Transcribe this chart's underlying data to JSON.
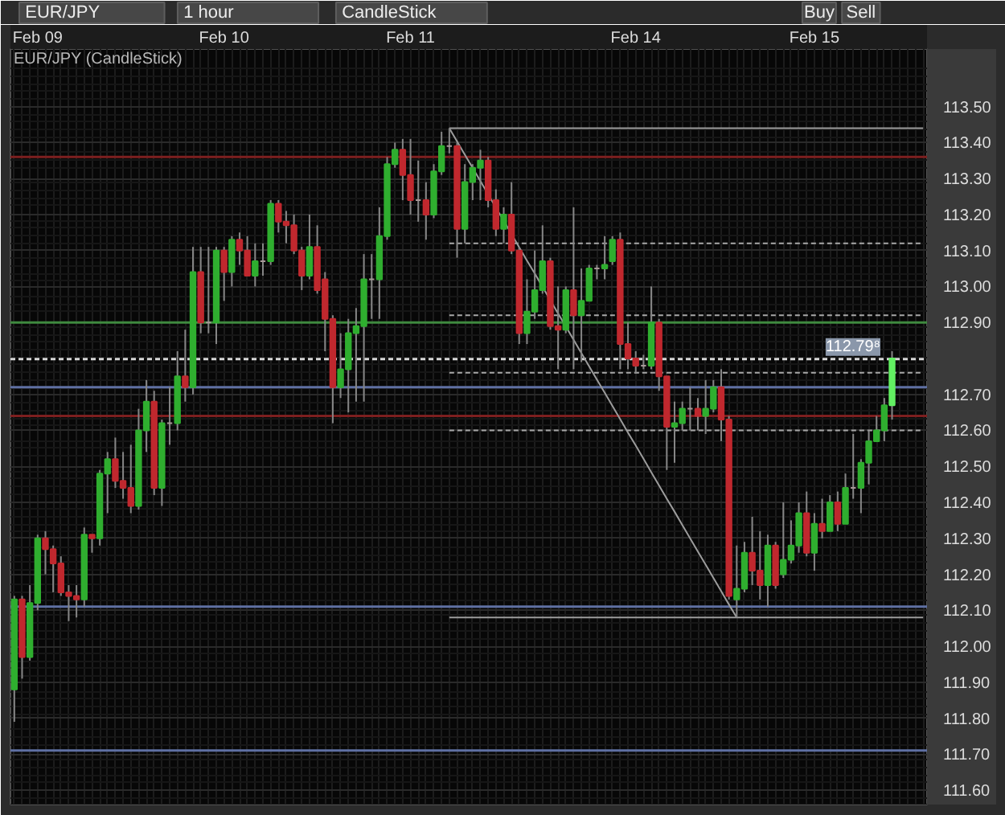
{
  "chart_data": {
    "type": "candlestick",
    "title": "EUR/JPY (CandleStick)",
    "annotations": [
      "EUR/JPY",
      "1 hour",
      "CandleStick",
      "Buy",
      "Sell"
    ],
    "categories": [
      null,
      null,
      null,
      "Feb 09",
      null,
      null,
      null,
      null,
      null,
      null,
      null,
      null,
      null,
      null,
      null,
      null,
      null,
      null,
      null,
      null,
      null,
      null,
      null,
      null,
      null,
      null,
      null,
      "Feb 10",
      null,
      null,
      null,
      null,
      null,
      null,
      null,
      null,
      null,
      null,
      null,
      null,
      null,
      null,
      null,
      null,
      null,
      null,
      null,
      null,
      null,
      null,
      null,
      "Feb 11",
      null,
      null,
      null,
      null,
      null,
      null,
      null,
      null,
      null,
      null,
      null,
      null,
      null,
      null,
      null,
      null,
      null,
      null,
      null,
      null,
      null,
      null,
      null,
      null,
      null,
      null,
      null,
      null,
      "Feb 14",
      null,
      null,
      null,
      null,
      null,
      null,
      null,
      null,
      null,
      null,
      null,
      null,
      null,
      null,
      null,
      null,
      null,
      null,
      null,
      null,
      null,
      null,
      "Feb 15",
      null,
      null,
      null,
      null,
      null,
      null,
      null,
      null,
      null,
      null,
      null,
      null,
      null,
      null
    ],
    "ohlc": [
      [
        111.88,
        112.14,
        111.79,
        112.13
      ],
      [
        112.13,
        112.14,
        111.91,
        111.97
      ],
      [
        111.97,
        112.17,
        111.96,
        112.12
      ],
      [
        112.12,
        112.31,
        112.1,
        112.3
      ],
      [
        112.3,
        112.32,
        112.2,
        112.27
      ],
      [
        112.27,
        112.28,
        112.15,
        112.23
      ],
      [
        112.23,
        112.25,
        112.14,
        112.15
      ],
      [
        112.15,
        112.17,
        112.07,
        112.14
      ],
      [
        112.14,
        112.17,
        112.08,
        112.13
      ],
      [
        112.13,
        112.33,
        112.11,
        112.31
      ],
      [
        112.31,
        112.31,
        112.26,
        112.3
      ],
      [
        112.3,
        112.49,
        112.28,
        112.48
      ],
      [
        112.48,
        112.54,
        112.37,
        112.52
      ],
      [
        112.52,
        112.58,
        112.44,
        112.46
      ],
      [
        112.46,
        112.54,
        112.41,
        112.44
      ],
      [
        112.44,
        112.56,
        112.37,
        112.39
      ],
      [
        112.39,
        112.66,
        112.38,
        112.6
      ],
      [
        112.6,
        112.74,
        112.54,
        112.68
      ],
      [
        112.68,
        112.71,
        112.42,
        112.44
      ],
      [
        112.44,
        112.63,
        112.39,
        112.62
      ],
      [
        112.62,
        112.72,
        112.56,
        112.62
      ],
      [
        112.62,
        112.82,
        112.6,
        112.75
      ],
      [
        112.75,
        112.88,
        112.68,
        112.72
      ],
      [
        112.72,
        113.11,
        112.7,
        113.04
      ],
      [
        113.04,
        113.11,
        112.87,
        112.9
      ],
      [
        112.9,
        113.11,
        112.87,
        112.9
      ],
      [
        112.9,
        113.11,
        112.84,
        113.1
      ],
      [
        113.1,
        113.11,
        112.96,
        113.04
      ],
      [
        113.04,
        113.14,
        113.0,
        113.13
      ],
      [
        113.13,
        113.15,
        113.06,
        113.1
      ],
      [
        113.1,
        113.14,
        113.03,
        113.03
      ],
      [
        113.03,
        113.12,
        113.0,
        113.07
      ],
      [
        113.07,
        113.12,
        113.03,
        113.07
      ],
      [
        113.07,
        113.24,
        113.06,
        113.23
      ],
      [
        113.23,
        113.24,
        113.15,
        113.18
      ],
      [
        113.18,
        113.21,
        113.12,
        113.17
      ],
      [
        113.17,
        113.2,
        113.09,
        113.1
      ],
      [
        113.1,
        113.11,
        112.99,
        113.03
      ],
      [
        113.03,
        113.2,
        113.02,
        113.11
      ],
      [
        113.11,
        113.17,
        112.98,
        112.99
      ],
      [
        113.02,
        113.04,
        112.82,
        112.91
      ],
      [
        112.91,
        112.92,
        112.62,
        112.72
      ],
      [
        112.72,
        112.87,
        112.69,
        112.77
      ],
      [
        112.77,
        112.91,
        112.65,
        112.87
      ],
      [
        112.87,
        112.94,
        112.68,
        112.89
      ],
      [
        112.89,
        113.09,
        112.68,
        113.02
      ],
      [
        113.02,
        113.09,
        112.91,
        113.02
      ],
      [
        113.02,
        113.22,
        112.91,
        113.14
      ],
      [
        113.14,
        113.36,
        113.13,
        113.34
      ],
      [
        113.34,
        113.4,
        113.33,
        113.38
      ],
      [
        113.38,
        113.41,
        113.24,
        113.31
      ],
      [
        113.31,
        113.41,
        113.2,
        113.24
      ],
      [
        113.24,
        113.35,
        113.18,
        113.24
      ],
      [
        113.24,
        113.29,
        113.13,
        113.2
      ],
      [
        113.2,
        113.34,
        113.19,
        113.32
      ],
      [
        113.32,
        113.43,
        113.31,
        113.39
      ],
      [
        113.39,
        113.44,
        113.37,
        113.39
      ],
      [
        113.39,
        113.4,
        113.08,
        113.16
      ],
      [
        113.16,
        113.34,
        113.12,
        113.29
      ],
      [
        113.29,
        113.34,
        113.24,
        113.33
      ],
      [
        113.33,
        113.38,
        113.24,
        113.35
      ],
      [
        113.35,
        113.36,
        113.22,
        113.24
      ],
      [
        113.24,
        113.27,
        113.14,
        113.16
      ],
      [
        113.16,
        113.22,
        113.12,
        113.2
      ],
      [
        113.2,
        113.29,
        113.09,
        113.1
      ],
      [
        113.1,
        113.11,
        112.84,
        112.87
      ],
      [
        112.87,
        113.02,
        112.84,
        112.93
      ],
      [
        112.93,
        113.1,
        112.91,
        112.99
      ],
      [
        112.99,
        113.17,
        112.98,
        113.07
      ],
      [
        113.07,
        113.08,
        112.88,
        112.89
      ],
      [
        112.89,
        113.0,
        112.77,
        112.88
      ],
      [
        112.88,
        113.0,
        112.87,
        112.99
      ],
      [
        112.99,
        113.22,
        112.77,
        112.92
      ],
      [
        112.92,
        113.05,
        112.79,
        112.96
      ],
      [
        112.96,
        113.06,
        112.96,
        113.05
      ],
      [
        113.05,
        113.06,
        113.02,
        113.05
      ],
      [
        113.05,
        113.14,
        113.02,
        113.06
      ],
      [
        113.07,
        113.14,
        113.06,
        113.13
      ],
      [
        113.13,
        113.15,
        112.77,
        112.84
      ],
      [
        112.84,
        112.9,
        112.77,
        112.8
      ],
      [
        112.8,
        112.82,
        112.76,
        112.78
      ],
      [
        112.78,
        112.81,
        112.77,
        112.78
      ],
      [
        112.78,
        113.0,
        112.77,
        112.9
      ],
      [
        112.9,
        112.91,
        112.71,
        112.75
      ],
      [
        112.75,
        112.75,
        112.49,
        112.61
      ],
      [
        112.61,
        112.68,
        112.51,
        112.62
      ],
      [
        112.62,
        112.68,
        112.6,
        112.66
      ],
      [
        112.66,
        112.72,
        112.6,
        112.66
      ],
      [
        112.66,
        112.69,
        112.6,
        112.64
      ],
      [
        112.64,
        112.74,
        112.59,
        112.66
      ],
      [
        112.66,
        112.74,
        112.65,
        112.72
      ],
      [
        112.72,
        112.77,
        112.57,
        112.63
      ],
      [
        112.63,
        112.64,
        112.13,
        112.14
      ],
      [
        112.13,
        112.28,
        112.08,
        112.16
      ],
      [
        112.16,
        112.29,
        112.15,
        112.26
      ],
      [
        112.26,
        112.36,
        112.17,
        112.21
      ],
      [
        112.21,
        112.32,
        112.13,
        112.17
      ],
      [
        112.17,
        112.31,
        112.11,
        112.28
      ],
      [
        112.28,
        112.29,
        112.16,
        112.17
      ],
      [
        112.2,
        112.4,
        112.19,
        112.24
      ],
      [
        112.24,
        112.35,
        112.23,
        112.28
      ],
      [
        112.28,
        112.4,
        112.26,
        112.37
      ],
      [
        112.37,
        112.43,
        112.25,
        112.26
      ],
      [
        112.26,
        112.37,
        112.21,
        112.34
      ],
      [
        112.34,
        112.41,
        112.3,
        112.32
      ],
      [
        112.32,
        112.42,
        112.32,
        112.4
      ],
      [
        112.4,
        112.43,
        112.32,
        112.34
      ],
      [
        112.34,
        112.48,
        112.34,
        112.44
      ],
      [
        112.44,
        112.59,
        112.41,
        112.44
      ],
      [
        112.44,
        112.52,
        112.37,
        112.51
      ],
      [
        112.51,
        112.6,
        112.45,
        112.57
      ],
      [
        112.57,
        112.64,
        112.57,
        112.6
      ],
      [
        112.6,
        112.69,
        112.57,
        112.67
      ],
      [
        112.67,
        112.82,
        112.63,
        112.8
      ],
      null,
      null,
      null,
      null
    ],
    "colors": [
      "#2fae2f",
      "#c0282e",
      "#2fae2f",
      "#2fae2f",
      "#c0282e",
      "#c0282e",
      "#c0282e",
      "#c0282e",
      "#c0282e",
      "#2fae2f",
      "#c0282e",
      "#2fae2f",
      "#2fae2f",
      "#c0282e",
      "#c0282e",
      "#c0282e",
      "#2fae2f",
      "#2fae2f",
      "#c0282e",
      "#2fae2f",
      "#a89898",
      "#2fae2f",
      "#c0282e",
      "#2fae2f",
      "#c0282e",
      "#a89898",
      "#2fae2f",
      "#c0282e",
      "#2fae2f",
      "#c0282e",
      "#c0282e",
      "#2fae2f",
      "#a89898",
      "#2fae2f",
      "#c0282e",
      "#c0282e",
      "#c0282e",
      "#c0282e",
      "#2fae2f",
      "#c0282e",
      "#c0282e",
      "#c0282e",
      "#2fae2f",
      "#2fae2f",
      "#2fae2f",
      "#2fae2f",
      "#a89898",
      "#2fae2f",
      "#2fae2f",
      "#2fae2f",
      "#c0282e",
      "#c0282e",
      "#a89898",
      "#c0282e",
      "#2fae2f",
      "#2fae2f",
      "#a89898",
      "#c0282e",
      "#2fae2f",
      "#2fae2f",
      "#2fae2f",
      "#c0282e",
      "#c0282e",
      "#2fae2f",
      "#c0282e",
      "#c0282e",
      "#2fae2f",
      "#2fae2f",
      "#2fae2f",
      "#c0282e",
      "#c0282e",
      "#2fae2f",
      "#c0282e",
      "#2fae2f",
      "#2fae2f",
      "#a89898",
      "#2fae2f",
      "#2fae2f",
      "#c0282e",
      "#c0282e",
      "#c0282e",
      "#a89898",
      "#2fae2f",
      "#c0282e",
      "#c0282e",
      "#2fae2f",
      "#2fae2f",
      "#a89898",
      "#c0282e",
      "#2fae2f",
      "#2fae2f",
      "#c0282e",
      "#c0282e",
      "#2fae2f",
      "#2fae2f",
      "#c0282e",
      "#c0282e",
      "#2fae2f",
      "#c0282e",
      "#2fae2f",
      "#2fae2f",
      "#2fae2f",
      "#c0282e",
      "#2fae2f",
      "#c0282e",
      "#2fae2f",
      "#c0282e",
      "#2fae2f",
      "#a89898",
      "#2fae2f",
      "#2fae2f",
      "#2fae2f",
      "#2fae2f",
      "#62f062",
      null,
      null,
      null,
      null
    ],
    "series": [
      {
        "type": "line",
        "color": "#9c9c9c",
        "line_style": "solid",
        "values": [
          null,
          null,
          null,
          null,
          null,
          null,
          null,
          null,
          null,
          null,
          null,
          null,
          null,
          null,
          null,
          null,
          null,
          null,
          null,
          null,
          null,
          null,
          null,
          null,
          null,
          null,
          null,
          null,
          null,
          null,
          null,
          null,
          null,
          null,
          null,
          null,
          null,
          null,
          null,
          null,
          null,
          null,
          null,
          null,
          null,
          null,
          null,
          null,
          null,
          null,
          null,
          null,
          null,
          null,
          null,
          null,
          113.44,
          113.44,
          113.44,
          113.44,
          113.44,
          113.44,
          113.44,
          113.44,
          113.44,
          113.44,
          113.44,
          113.44,
          113.44,
          113.44,
          113.44,
          113.44,
          113.44,
          113.44,
          113.44,
          113.44,
          113.44,
          113.44,
          113.44,
          113.44,
          113.44,
          113.44,
          113.44,
          113.44,
          113.44,
          113.44,
          113.44,
          113.44,
          113.44,
          113.44,
          113.44,
          113.44,
          113.44,
          113.44,
          113.44,
          113.44,
          113.44,
          113.44,
          113.44,
          113.44,
          113.44,
          113.44,
          113.44,
          113.44,
          113.44,
          113.44,
          113.44,
          113.44,
          113.44,
          113.44,
          113.44,
          113.44,
          113.44,
          113.44,
          113.44,
          113.44,
          113.44,
          113.44
        ]
      },
      {
        "type": "line",
        "color": "#a8a8a8",
        "line_style": "dashed",
        "values": [
          null,
          null,
          null,
          null,
          null,
          null,
          null,
          null,
          null,
          null,
          null,
          null,
          null,
          null,
          null,
          null,
          null,
          null,
          null,
          null,
          null,
          null,
          null,
          null,
          null,
          null,
          null,
          null,
          null,
          null,
          null,
          null,
          null,
          null,
          null,
          null,
          null,
          null,
          null,
          null,
          null,
          null,
          null,
          null,
          null,
          null,
          null,
          null,
          null,
          null,
          null,
          null,
          null,
          null,
          null,
          null,
          113.12,
          113.12,
          113.12,
          113.12,
          113.12,
          113.12,
          113.12,
          113.12,
          113.12,
          113.12,
          113.12,
          113.12,
          113.12,
          113.12,
          113.12,
          113.12,
          113.12,
          113.12,
          113.12,
          113.12,
          113.12,
          113.12,
          113.12,
          113.12,
          113.12,
          113.12,
          113.12,
          113.12,
          113.12,
          113.12,
          113.12,
          113.12,
          113.12,
          113.12,
          113.12,
          113.12,
          113.12,
          113.12,
          113.12,
          113.12,
          113.12,
          113.12,
          113.12,
          113.12,
          113.12,
          113.12,
          113.12,
          113.12,
          113.12,
          113.12,
          113.12,
          113.12,
          113.12,
          113.12,
          113.12,
          113.12,
          113.12,
          113.12,
          113.12,
          113.12,
          113.12,
          113.12
        ]
      },
      {
        "type": "line",
        "color": "#a8a8a8",
        "line_style": "dashed",
        "values": [
          null,
          null,
          null,
          null,
          null,
          null,
          null,
          null,
          null,
          null,
          null,
          null,
          null,
          null,
          null,
          null,
          null,
          null,
          null,
          null,
          null,
          null,
          null,
          null,
          null,
          null,
          null,
          null,
          null,
          null,
          null,
          null,
          null,
          null,
          null,
          null,
          null,
          null,
          null,
          null,
          null,
          null,
          null,
          null,
          null,
          null,
          null,
          null,
          null,
          null,
          null,
          null,
          null,
          null,
          null,
          null,
          112.92,
          112.92,
          112.92,
          112.92,
          112.92,
          112.92,
          112.92,
          112.92,
          112.92,
          112.92,
          112.92,
          112.92,
          112.92,
          112.92,
          112.92,
          112.92,
          112.92,
          112.92,
          112.92,
          112.92,
          112.92,
          112.92,
          112.92,
          112.92,
          112.92,
          112.92,
          112.92,
          112.92,
          112.92,
          112.92,
          112.92,
          112.92,
          112.92,
          112.92,
          112.92,
          112.92,
          112.92,
          112.92,
          112.92,
          112.92,
          112.92,
          112.92,
          112.92,
          112.92,
          112.92,
          112.92,
          112.92,
          112.92,
          112.92,
          112.92,
          112.92,
          112.92,
          112.92,
          112.92,
          112.92,
          112.92,
          112.92,
          112.92,
          112.92,
          112.92,
          112.92,
          112.92
        ]
      },
      {
        "type": "line",
        "color": "#a8a8a8",
        "line_style": "dashed",
        "values": [
          null,
          null,
          null,
          null,
          null,
          null,
          null,
          null,
          null,
          null,
          null,
          null,
          null,
          null,
          null,
          null,
          null,
          null,
          null,
          null,
          null,
          null,
          null,
          null,
          null,
          null,
          null,
          null,
          null,
          null,
          null,
          null,
          null,
          null,
          null,
          null,
          null,
          null,
          null,
          null,
          null,
          null,
          null,
          null,
          null,
          null,
          null,
          null,
          null,
          null,
          null,
          null,
          null,
          null,
          null,
          null,
          112.76,
          112.76,
          112.76,
          112.76,
          112.76,
          112.76,
          112.76,
          112.76,
          112.76,
          112.76,
          112.76,
          112.76,
          112.76,
          112.76,
          112.76,
          112.76,
          112.76,
          112.76,
          112.76,
          112.76,
          112.76,
          112.76,
          112.76,
          112.76,
          112.76,
          112.76,
          112.76,
          112.76,
          112.76,
          112.76,
          112.76,
          112.76,
          112.76,
          112.76,
          112.76,
          112.76,
          112.76,
          112.76,
          112.76,
          112.76,
          112.76,
          112.76,
          112.76,
          112.76,
          112.76,
          112.76,
          112.76,
          112.76,
          112.76,
          112.76,
          112.76,
          112.76,
          112.76,
          112.76,
          112.76,
          112.76,
          112.76,
          112.76,
          112.76,
          112.76,
          112.76,
          112.76
        ]
      },
      {
        "type": "line",
        "color": "#a8a8a8",
        "line_style": "dashed",
        "values": [
          null,
          null,
          null,
          null,
          null,
          null,
          null,
          null,
          null,
          null,
          null,
          null,
          null,
          null,
          null,
          null,
          null,
          null,
          null,
          null,
          null,
          null,
          null,
          null,
          null,
          null,
          null,
          null,
          null,
          null,
          null,
          null,
          null,
          null,
          null,
          null,
          null,
          null,
          null,
          null,
          null,
          null,
          null,
          null,
          null,
          null,
          null,
          null,
          null,
          null,
          null,
          null,
          null,
          null,
          null,
          null,
          112.6,
          112.6,
          112.6,
          112.6,
          112.6,
          112.6,
          112.6,
          112.6,
          112.6,
          112.6,
          112.6,
          112.6,
          112.6,
          112.6,
          112.6,
          112.6,
          112.6,
          112.6,
          112.6,
          112.6,
          112.6,
          112.6,
          112.6,
          112.6,
          112.6,
          112.6,
          112.6,
          112.6,
          112.6,
          112.6,
          112.6,
          112.6,
          112.6,
          112.6,
          112.6,
          112.6,
          112.6,
          112.6,
          112.6,
          112.6,
          112.6,
          112.6,
          112.6,
          112.6,
          112.6,
          112.6,
          112.6,
          112.6,
          112.6,
          112.6,
          112.6,
          112.6,
          112.6,
          112.6,
          112.6,
          112.6,
          112.6,
          112.6,
          112.6,
          112.6,
          112.6,
          112.6
        ]
      },
      {
        "type": "line",
        "color": "#9c9c9c",
        "line_style": "solid",
        "values": [
          null,
          null,
          null,
          null,
          null,
          null,
          null,
          null,
          null,
          null,
          null,
          null,
          null,
          null,
          null,
          null,
          null,
          null,
          null,
          null,
          null,
          null,
          null,
          null,
          null,
          null,
          null,
          null,
          null,
          null,
          null,
          null,
          null,
          null,
          null,
          null,
          null,
          null,
          null,
          null,
          null,
          null,
          null,
          null,
          null,
          null,
          null,
          null,
          null,
          null,
          null,
          null,
          null,
          null,
          null,
          null,
          112.08,
          112.08,
          112.08,
          112.08,
          112.08,
          112.08,
          112.08,
          112.08,
          112.08,
          112.08,
          112.08,
          112.08,
          112.08,
          112.08,
          112.08,
          112.08,
          112.08,
          112.08,
          112.08,
          112.08,
          112.08,
          112.08,
          112.08,
          112.08,
          112.08,
          112.08,
          112.08,
          112.08,
          112.08,
          112.08,
          112.08,
          112.08,
          112.08,
          112.08,
          112.08,
          112.08,
          112.08,
          112.08,
          112.08,
          112.08,
          112.08,
          112.08,
          112.08,
          112.08,
          112.08,
          112.08,
          112.08,
          112.08,
          112.08,
          112.08,
          112.08,
          112.08,
          112.08,
          112.08,
          112.08,
          112.08,
          112.08,
          112.08,
          112.08,
          112.08,
          112.08,
          112.08
        ]
      },
      {
        "type": "line",
        "color": "#9c9c9c",
        "line_style": "solid",
        "values": [
          null,
          null,
          null,
          null,
          null,
          null,
          null,
          null,
          null,
          null,
          null,
          null,
          null,
          null,
          null,
          null,
          null,
          null,
          null,
          null,
          null,
          null,
          null,
          null,
          null,
          null,
          null,
          null,
          null,
          null,
          null,
          null,
          null,
          null,
          null,
          null,
          null,
          null,
          null,
          null,
          null,
          null,
          null,
          null,
          null,
          null,
          null,
          null,
          null,
          null,
          null,
          null,
          null,
          null,
          null,
          null,
          113.44,
          113.403,
          113.366,
          113.33,
          113.293,
          113.256,
          113.219,
          113.183,
          113.146,
          113.109,
          113.072,
          113.036,
          112.999,
          112.962,
          112.925,
          112.889,
          112.852,
          112.815,
          112.778,
          112.741,
          112.705,
          112.668,
          112.631,
          112.594,
          112.558,
          112.521,
          112.484,
          112.447,
          112.41,
          112.374,
          112.337,
          112.3,
          112.263,
          112.227,
          112.19,
          112.153,
          112.116,
          112.08,
          null,
          null,
          null,
          null,
          null,
          null,
          null,
          null,
          null,
          null,
          null,
          null,
          null,
          null,
          null,
          null,
          null,
          null,
          null,
          null,
          null,
          null,
          null,
          null
        ]
      }
    ],
    "ref_lines": [
      {
        "axis": "y",
        "value": 113.36,
        "color": "#7d1f1f"
      },
      {
        "axis": "y",
        "value": 112.9,
        "color": "#3f8a3f"
      },
      {
        "axis": "y",
        "value": 112.798,
        "label": "112.79⁸",
        "color": "#d6d6d6",
        "line_style": "dashed"
      },
      {
        "axis": "y",
        "value": 112.72,
        "color": "#5f70a3"
      },
      {
        "axis": "y",
        "value": 112.64,
        "color": "#7d1f1f"
      },
      {
        "axis": "y",
        "value": 112.11,
        "color": "#5f70a3"
      },
      {
        "axis": "y",
        "value": 111.71,
        "color": "#5f70a3"
      }
    ],
    "ylim": [
      111.56,
      113.66
    ],
    "yticks": [
      {
        "value": 111.6,
        "label": "111.60"
      },
      {
        "value": 111.7,
        "label": "111.70"
      },
      {
        "value": 111.8,
        "label": "111.80"
      },
      {
        "value": 111.9,
        "label": "111.90"
      },
      {
        "value": 112.0,
        "label": "112.00"
      },
      {
        "value": 112.1,
        "label": "112.10"
      },
      {
        "value": 112.2,
        "label": "112.20"
      },
      {
        "value": 112.3,
        "label": "112.30"
      },
      {
        "value": 112.4,
        "label": "112.40"
      },
      {
        "value": 112.5,
        "label": "112.50"
      },
      {
        "value": 112.6,
        "label": "112.60"
      },
      {
        "value": 112.7,
        "label": "112.70"
      },
      {
        "value": 112.9,
        "label": "112.90"
      },
      {
        "value": 113.0,
        "label": "113.00"
      },
      {
        "value": 113.1,
        "label": "113.10"
      },
      {
        "value": 113.2,
        "label": "113.20"
      },
      {
        "value": 113.3,
        "label": "113.30"
      },
      {
        "value": 113.4,
        "label": "113.40"
      },
      {
        "value": 113.5,
        "label": "113.50"
      }
    ],
    "grid": true
  }
}
